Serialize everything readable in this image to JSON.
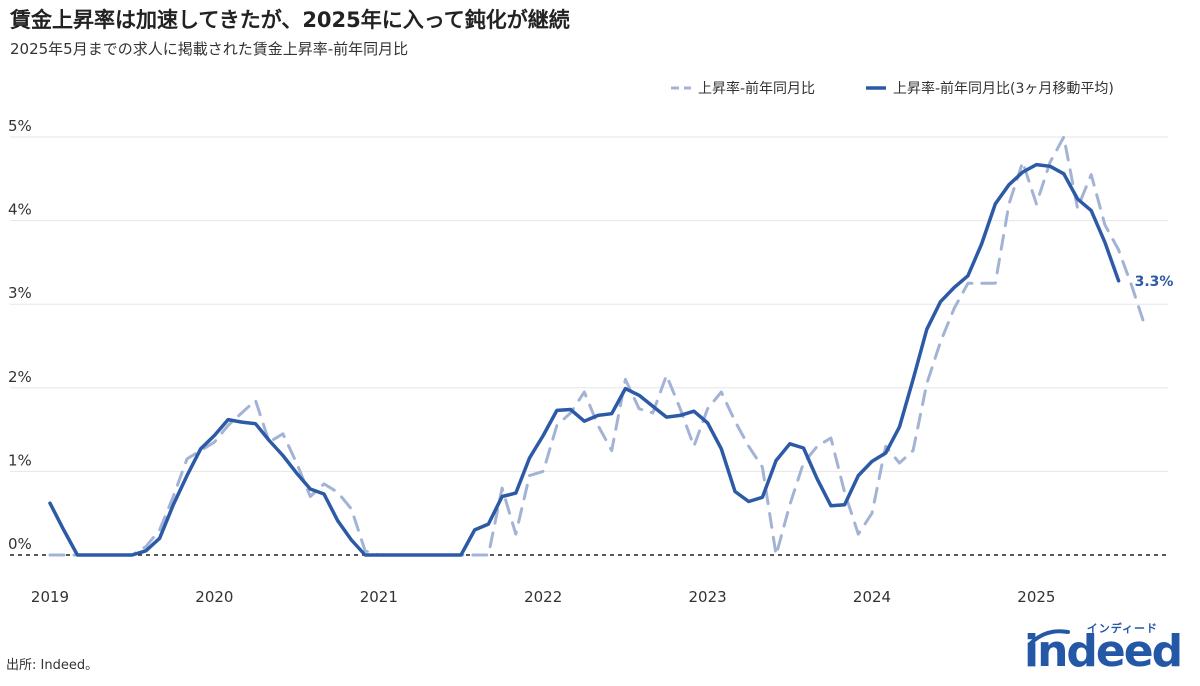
{
  "header": {
    "title": "賃金上昇率は加速してきたが、2025年に入って鈍化が継続",
    "subtitle": "2025年5月までの求人に掲載された賃金上昇率-前年同月比"
  },
  "footer": {
    "source": "出所: Indeed。"
  },
  "logo": {
    "word": "indeed",
    "kana": "インディード"
  },
  "colors": {
    "series_main": "#2d5aa6",
    "series_dashed": "#a3b3d6",
    "grid": "#e6e6e6",
    "zero_line": "#222222"
  },
  "chart_data": {
    "type": "line",
    "x_start": "2019-01",
    "x_end": "2025-05",
    "x_ticks": [
      "2019",
      "2020",
      "2021",
      "2022",
      "2023",
      "2024",
      "2025"
    ],
    "y_ticks": [
      "0%",
      "1%",
      "2%",
      "3%",
      "4%",
      "5%"
    ],
    "ylim": [
      0,
      5
    ],
    "grid": true,
    "legend_position": "top-right",
    "series": [
      {
        "name": "上昇率-前年同月比",
        "style": "dashed",
        "values": [
          0.0,
          0.0,
          0.0,
          0.0,
          0.0,
          0.0,
          0.0,
          0.1,
          0.3,
          0.7,
          1.15,
          1.25,
          1.35,
          1.55,
          1.7,
          1.85,
          1.35,
          1.45,
          1.1,
          0.7,
          0.85,
          0.75,
          0.55,
          0.05,
          0.0,
          0.0,
          0.0,
          0.0,
          0.0,
          0.0,
          0.0,
          0.0,
          0.0,
          0.8,
          0.25,
          0.95,
          1.0,
          1.55,
          1.7,
          1.95,
          1.55,
          1.25,
          2.1,
          1.75,
          1.7,
          2.15,
          1.75,
          1.3,
          1.75,
          1.95,
          1.6,
          1.3,
          1.05,
          0.0,
          0.6,
          1.1,
          1.3,
          1.4,
          0.75,
          0.25,
          0.5,
          1.3,
          1.1,
          1.25,
          2.05,
          2.55,
          2.95,
          3.25,
          3.25,
          3.25,
          4.2,
          4.7,
          4.2,
          4.7,
          5.0,
          4.15,
          4.55,
          3.95,
          3.65,
          3.2,
          2.7
        ]
      },
      {
        "name": "上昇率-前年同月比(3ヶ月移動平均)",
        "style": "solid",
        "values": [
          0.62,
          0.3,
          0.0,
          0.0,
          0.0,
          0.0,
          0.0,
          0.05,
          0.2,
          0.6,
          0.95,
          1.27,
          1.43,
          1.62,
          1.59,
          1.57,
          1.37,
          1.19,
          0.98,
          0.79,
          0.73,
          0.41,
          0.18,
          0.0,
          0.0,
          0.0,
          0.0,
          0.0,
          0.0,
          0.0,
          0.0,
          0.3,
          0.37,
          0.7,
          0.74,
          1.16,
          1.43,
          1.73,
          1.74,
          1.6,
          1.67,
          1.69,
          1.99,
          1.91,
          1.78,
          1.65,
          1.67,
          1.72,
          1.58,
          1.27,
          0.76,
          0.64,
          0.69,
          1.13,
          1.33,
          1.28,
          0.91,
          0.59,
          0.6,
          0.95,
          1.12,
          1.22,
          1.53,
          2.1,
          2.7,
          3.03,
          3.2,
          3.34,
          3.72,
          4.2,
          4.43,
          4.58,
          4.67,
          4.65,
          4.56,
          4.26,
          4.12,
          3.74,
          3.28
        ]
      }
    ],
    "end_label": "3.3%"
  }
}
